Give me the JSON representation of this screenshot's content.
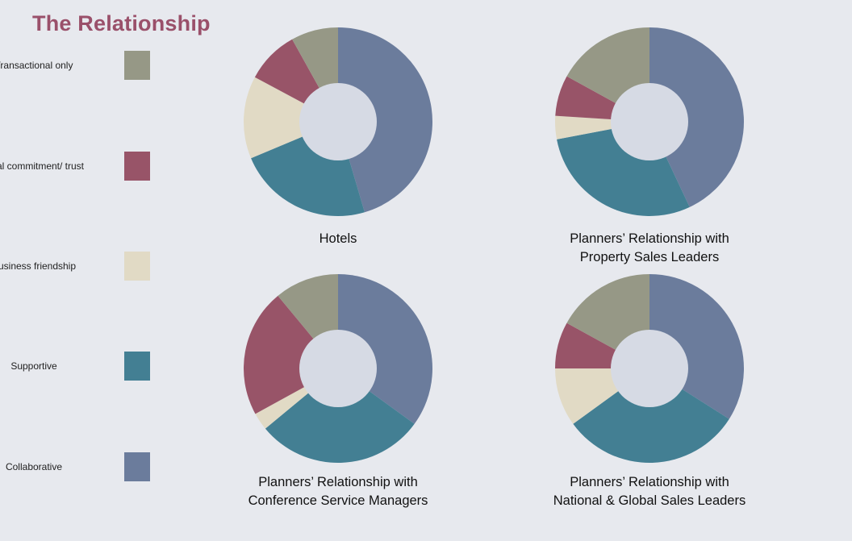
{
  "title": "The Relationship",
  "legend": [
    {
      "label": "Transactional only",
      "color": "#969886"
    },
    {
      "label": "Total commitment/ trust",
      "color": "#985468"
    },
    {
      "label": "Business friendship",
      "color": "#e1dac5"
    },
    {
      "label": "Supportive",
      "color": "#437f93"
    },
    {
      "label": "Collaborative",
      "color": "#6b7c9c"
    }
  ],
  "chart_data": [
    {
      "type": "pie",
      "title_lines": [
        "Hotels"
      ],
      "categories": [
        "Collaborative",
        "Supportive",
        "Business friendship",
        "Total commitment/ trust",
        "Transactional only"
      ],
      "values": [
        45,
        23,
        14,
        9,
        8
      ]
    },
    {
      "type": "pie",
      "title_lines": [
        "Planners’ Relationship with",
        "Property Sales Leaders"
      ],
      "categories": [
        "Collaborative",
        "Supportive",
        "Business friendship",
        "Total commitment/ trust",
        "Transactional only"
      ],
      "values": [
        43,
        29,
        4,
        7,
        17
      ]
    },
    {
      "type": "pie",
      "title_lines": [
        "Planners’ Relationship with",
        "Conference Service Managers"
      ],
      "categories": [
        "Collaborative",
        "Supportive",
        "Business friendship",
        "Total commitment/ trust",
        "Transactional only"
      ],
      "values": [
        35,
        29,
        3,
        22,
        11
      ]
    },
    {
      "type": "pie",
      "title_lines": [
        "Planners’ Relationship with",
        "National & Global Sales Leaders"
      ],
      "categories": [
        "Collaborative",
        "Supportive",
        "Business friendship",
        "Total commitment/ trust",
        "Transactional only"
      ],
      "values": [
        34,
        31,
        10,
        8,
        17
      ]
    }
  ]
}
